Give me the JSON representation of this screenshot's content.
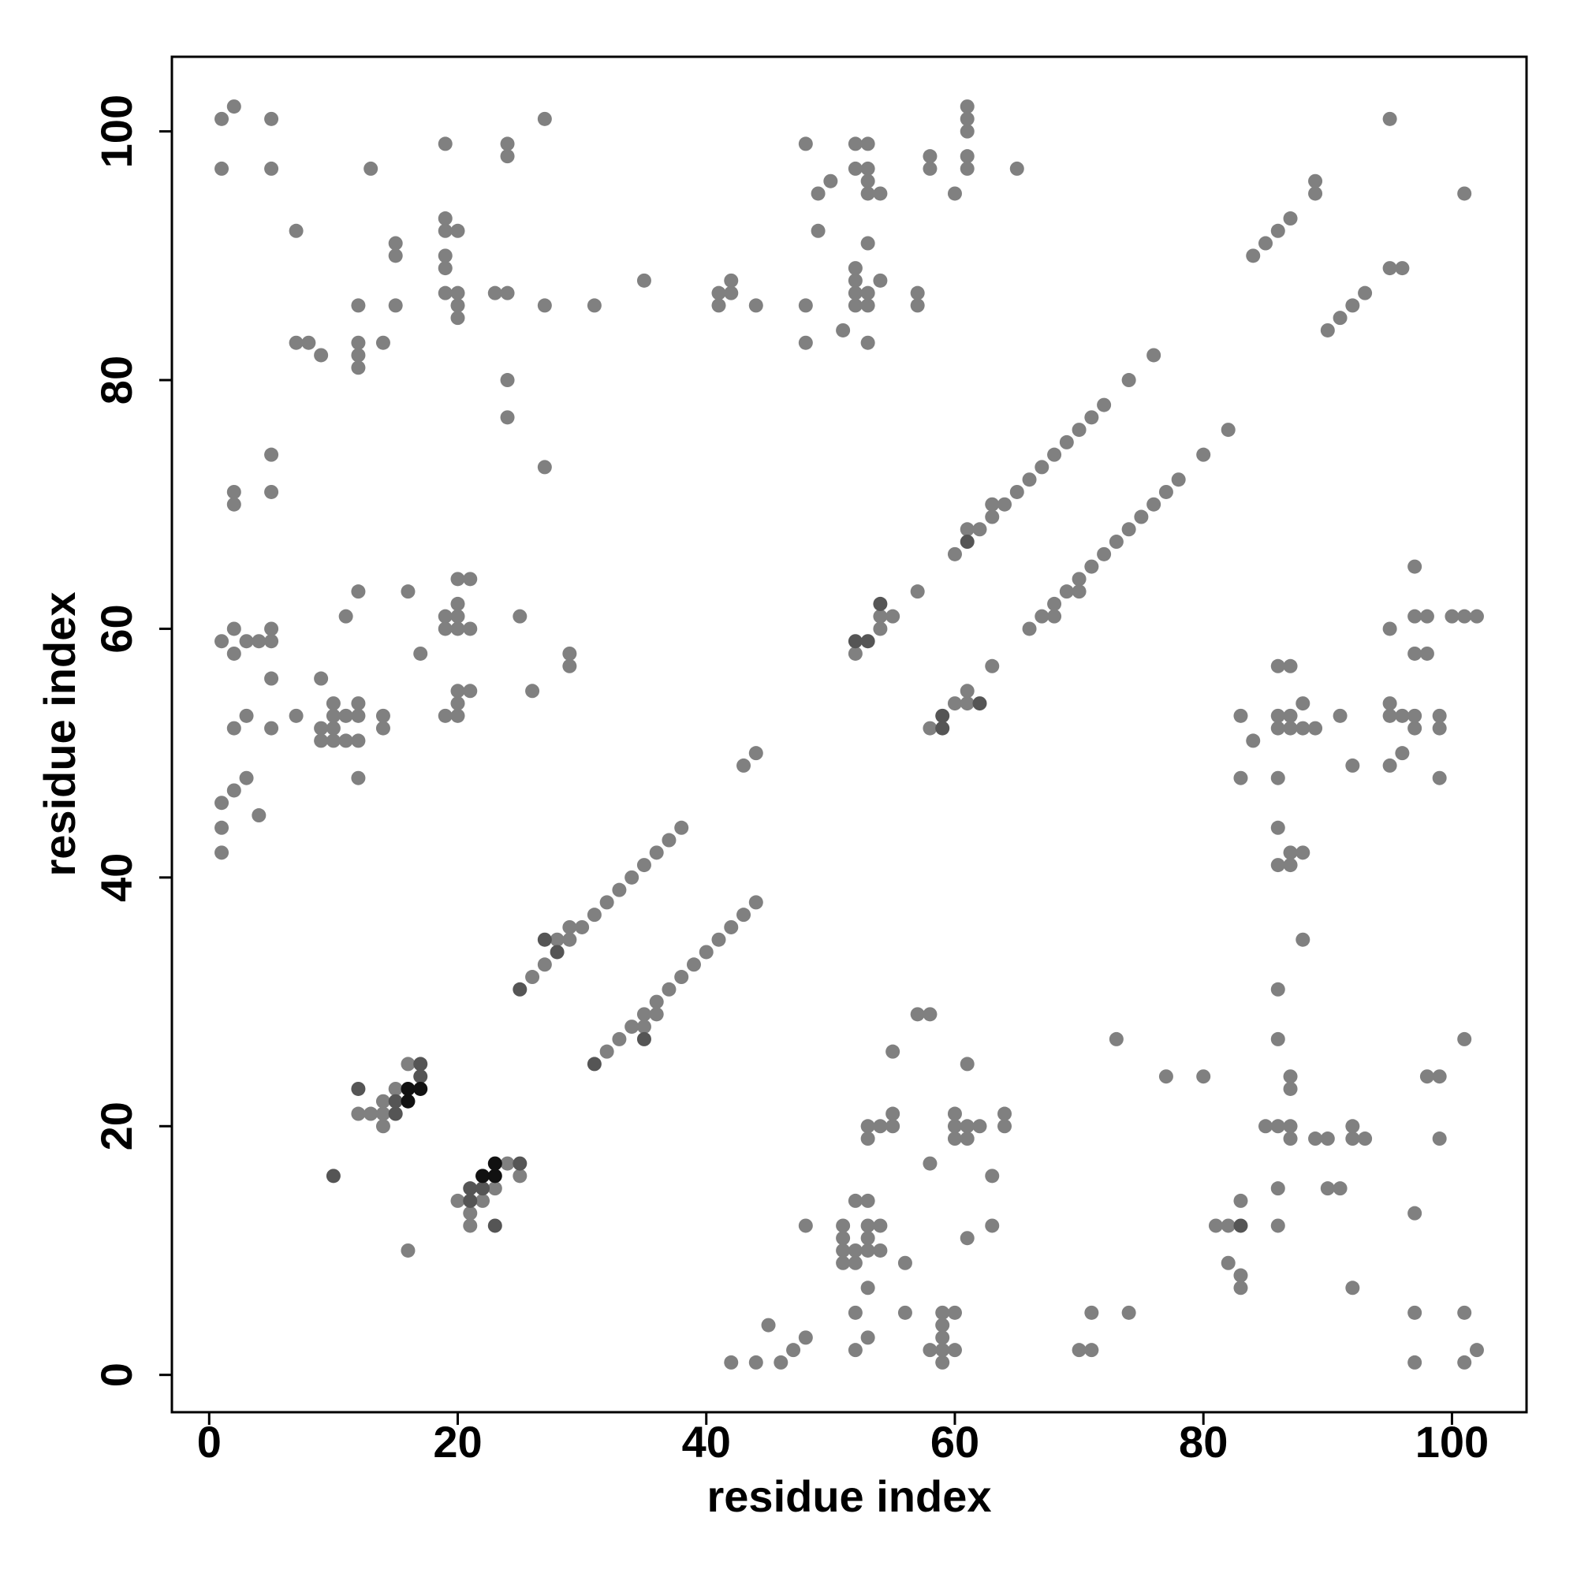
{
  "chart_data": {
    "type": "scatter",
    "x_label": "residue index",
    "y_label": "residue index",
    "xlim": [
      -3,
      106
    ],
    "ylim": [
      -3,
      106
    ],
    "xticks": [
      0,
      20,
      40,
      60,
      80,
      100
    ],
    "yticks": [
      0,
      20,
      40,
      60,
      80,
      100
    ],
    "grid": false,
    "series": [
      {
        "color": "#808080",
        "x": [
          1,
          2,
          5,
          1,
          5,
          13,
          19,
          24,
          24,
          27,
          7,
          19,
          19,
          20,
          15,
          15,
          19,
          19,
          19,
          20,
          20,
          20,
          23,
          24,
          27,
          31,
          35,
          12,
          15,
          7,
          8,
          9,
          12,
          12,
          12,
          14,
          24,
          24,
          27,
          5,
          2,
          2,
          5,
          1,
          2,
          2,
          3,
          4,
          5,
          5,
          5,
          2,
          3,
          5,
          3,
          2,
          1,
          4,
          1,
          1,
          7,
          9,
          9,
          9,
          10,
          10,
          10,
          10,
          11,
          11,
          12,
          12,
          12,
          12,
          11,
          12,
          14,
          14,
          16,
          17,
          19,
          19,
          20,
          21,
          20,
          20,
          20,
          21,
          20,
          21,
          20,
          19,
          20,
          25,
          26,
          29,
          29,
          26,
          27,
          28,
          29,
          29,
          30,
          31,
          32,
          33,
          34,
          35,
          36,
          37,
          38,
          43,
          44,
          32,
          33,
          34,
          35,
          35,
          36,
          36,
          37,
          38,
          39,
          40,
          41,
          42,
          43,
          44,
          12,
          13,
          14,
          14,
          14,
          15,
          16,
          16,
          20,
          21,
          21,
          22,
          23,
          24,
          25,
          48,
          49,
          50,
          49,
          52,
          53,
          52,
          53,
          53,
          53,
          54,
          53,
          52,
          52,
          52,
          53,
          52,
          53,
          54,
          51,
          53,
          48,
          48,
          41,
          41,
          42,
          42,
          44,
          57,
          57,
          58,
          58,
          60,
          61,
          61,
          61,
          61,
          61,
          65,
          52,
          54,
          54,
          55,
          57,
          60,
          61,
          62,
          63,
          63,
          64,
          65,
          66,
          67,
          68,
          69,
          70,
          71,
          72,
          74,
          76,
          58,
          60,
          61,
          61,
          63,
          66,
          67,
          68,
          68,
          69,
          70,
          70,
          71,
          72,
          73,
          74,
          75,
          76,
          77,
          78,
          80,
          82,
          84,
          85,
          86,
          87,
          89,
          89,
          90,
          91,
          92,
          93,
          95,
          95,
          96,
          101,
          97,
          95,
          97,
          98,
          100,
          101,
          102,
          97,
          98,
          95,
          95,
          96,
          97,
          97,
          99,
          99,
          96,
          95,
          99,
          86,
          87,
          88,
          83,
          86,
          87,
          86,
          87,
          88,
          89,
          91,
          84,
          92,
          83,
          86,
          86,
          87,
          88,
          86,
          87,
          88,
          57,
          58,
          55,
          61,
          55,
          53,
          54,
          55,
          53,
          60,
          60,
          61,
          62,
          60,
          61,
          64,
          64,
          58,
          63,
          52,
          53,
          48,
          51,
          53,
          54,
          51,
          53,
          51,
          52,
          53,
          54,
          51,
          52,
          56,
          61,
          63,
          53,
          52,
          56,
          59,
          60,
          59,
          59,
          53,
          48,
          45,
          47,
          46,
          44,
          42,
          52,
          58,
          59,
          60,
          59,
          71,
          74,
          70,
          71,
          73,
          77,
          80,
          86,
          86,
          87,
          87,
          85,
          86,
          87,
          87,
          89,
          90,
          92,
          92,
          93,
          90,
          91,
          86,
          86,
          81,
          82,
          83,
          82,
          83,
          83,
          92,
          97,
          98,
          99,
          101,
          99,
          97,
          101,
          102,
          97,
          101
        ],
        "values": [
          101,
          102,
          101,
          97,
          97,
          97,
          99,
          99,
          98,
          101,
          92,
          93,
          92,
          92,
          91,
          90,
          90,
          89,
          87,
          87,
          86,
          85,
          87,
          87,
          86,
          86,
          88,
          86,
          86,
          83,
          83,
          82,
          83,
          82,
          81,
          83,
          80,
          77,
          73,
          74,
          71,
          70,
          71,
          59,
          60,
          58,
          59,
          59,
          60,
          59,
          56,
          52,
          53,
          52,
          48,
          47,
          46,
          45,
          44,
          42,
          53,
          56,
          52,
          51,
          54,
          53,
          52,
          51,
          53,
          51,
          54,
          53,
          51,
          48,
          61,
          63,
          53,
          52,
          63,
          58,
          61,
          60,
          64,
          64,
          62,
          61,
          60,
          60,
          55,
          55,
          54,
          53,
          53,
          61,
          55,
          58,
          57,
          32,
          33,
          35,
          35,
          36,
          36,
          37,
          38,
          39,
          40,
          41,
          42,
          43,
          44,
          49,
          50,
          26,
          27,
          28,
          28,
          29,
          29,
          30,
          31,
          32,
          33,
          34,
          35,
          36,
          37,
          38,
          21,
          21,
          22,
          21,
          20,
          23,
          25,
          10,
          14,
          13,
          12,
          14,
          15,
          17,
          16,
          99,
          95,
          96,
          92,
          99,
          99,
          97,
          97,
          96,
          95,
          95,
          91,
          89,
          88,
          87,
          87,
          86,
          86,
          88,
          84,
          83,
          86,
          83,
          87,
          86,
          88,
          87,
          86,
          87,
          86,
          98,
          97,
          95,
          102,
          101,
          100,
          98,
          97,
          97,
          58,
          61,
          60,
          61,
          63,
          66,
          68,
          68,
          69,
          70,
          70,
          71,
          72,
          73,
          74,
          75,
          76,
          77,
          78,
          80,
          82,
          52,
          54,
          55,
          54,
          57,
          60,
          61,
          62,
          61,
          63,
          64,
          63,
          65,
          66,
          67,
          68,
          69,
          70,
          71,
          72,
          74,
          76,
          90,
          91,
          92,
          93,
          96,
          95,
          84,
          85,
          86,
          87,
          101,
          89,
          89,
          95,
          65,
          60,
          61,
          61,
          61,
          61,
          61,
          58,
          58,
          54,
          53,
          53,
          53,
          52,
          53,
          52,
          50,
          49,
          48,
          57,
          57,
          54,
          53,
          53,
          53,
          52,
          52,
          52,
          52,
          53,
          51,
          49,
          48,
          48,
          44,
          42,
          42,
          41,
          41,
          35,
          29,
          29,
          26,
          25,
          21,
          20,
          20,
          20,
          19,
          21,
          20,
          20,
          20,
          19,
          19,
          21,
          20,
          17,
          16,
          14,
          14,
          12,
          12,
          12,
          12,
          11,
          11,
          10,
          10,
          10,
          10,
          9,
          9,
          9,
          11,
          12,
          7,
          5,
          5,
          5,
          5,
          4,
          3,
          3,
          3,
          4,
          2,
          1,
          1,
          1,
          2,
          2,
          2,
          2,
          1,
          5,
          5,
          2,
          2,
          27,
          24,
          24,
          31,
          27,
          24,
          23,
          20,
          20,
          20,
          19,
          19,
          19,
          20,
          19,
          19,
          15,
          15,
          15,
          12,
          12,
          12,
          14,
          9,
          8,
          7,
          7,
          13,
          24,
          24,
          27,
          19,
          5,
          5,
          2,
          1,
          1
        ]
      },
      {
        "color": "#555555",
        "x": [
          25,
          27,
          28,
          31,
          35,
          12,
          15,
          15,
          17,
          17,
          10,
          21,
          21,
          22,
          23,
          25,
          52,
          53,
          54,
          61,
          59,
          59,
          62,
          83
        ],
        "values": [
          31,
          35,
          34,
          25,
          27,
          23,
          21,
          22,
          25,
          24,
          16,
          15,
          14,
          15,
          12,
          17,
          59,
          59,
          62,
          67,
          53,
          52,
          54,
          12
        ]
      },
      {
        "color": "#111111",
        "x": [
          16,
          16,
          17,
          22,
          23,
          23
        ],
        "values": [
          23,
          22,
          23,
          16,
          17,
          16
        ]
      }
    ]
  }
}
